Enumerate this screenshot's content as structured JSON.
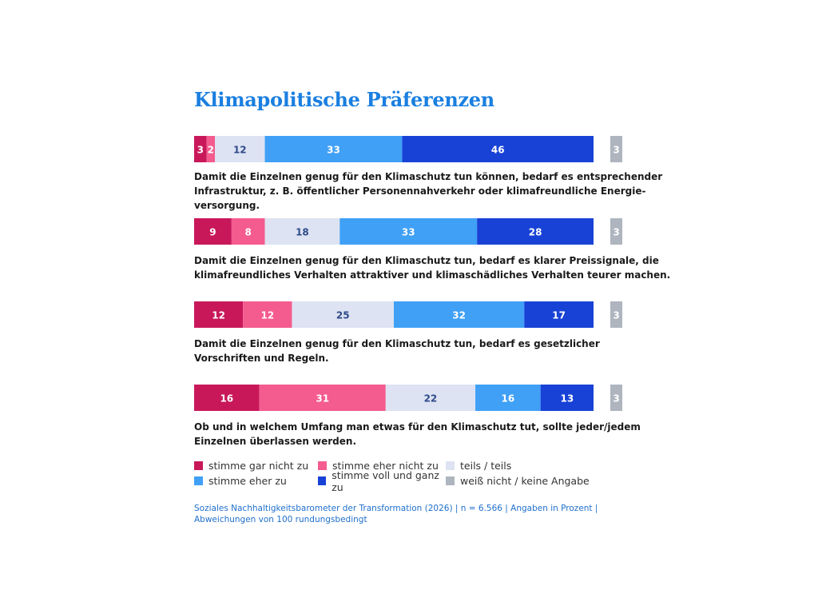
{
  "chart_data": {
    "type": "bar",
    "orientation": "horizontal-stacked",
    "title": "Klimapolitische Präferenzen",
    "categories": [
      "Damit die Einzelnen genug für den Klimaschutz tun können, bedarf es entsprechender Infrastruktur, z. B. öffentlicher Personennahverkehr oder klimafreundliche Energie- versorgung.",
      "Damit die Einzelnen genug für den Klimaschutz tun, bedarf es klarer Preissignale, die klimafreundliches Verhalten attraktiver und klimaschädliches Verhalten teurer machen.",
      "Damit die Einzelnen genug für den Klimaschutz tun, bedarf es gesetzlicher Vorschriften und Regeln.",
      "Ob und in welchem Umfang man etwas für den Klimaschutz tut, sollte jeder/jedem Einzelnen überlassen werden."
    ],
    "category_lines": [
      [
        "Damit die Einzelnen genug für den Klimaschutz tun können, bedarf es entsprechender",
        "Infrastruktur, z. B. öffentlicher Personennahverkehr oder klimafreundliche Energie-",
        "versorgung."
      ],
      [
        "Damit die Einzelnen genug für den Klimaschutz tun, bedarf es klarer Preissignale, die",
        "klimafreundliches Verhalten attraktiver und klimaschädliches Verhalten teurer machen."
      ],
      [
        "Damit die Einzelnen genug für den Klimaschutz tun, bedarf es gesetzlicher",
        "Vorschriften und Regeln."
      ],
      [
        "Ob und in welchem Umfang man etwas für den Klimaschutz tut, sollte jeder/jedem",
        "Einzelnen überlassen werden."
      ]
    ],
    "series": [
      {
        "name": "stimme gar nicht zu",
        "color": "#c8185a",
        "label_color": "#ffffff",
        "values": [
          3,
          9,
          12,
          16
        ]
      },
      {
        "name": "stimme eher nicht zu",
        "color": "#f45b8e",
        "label_color": "#ffffff",
        "values": [
          2,
          8,
          12,
          31
        ]
      },
      {
        "name": "teils / teils",
        "color": "#dde3f2",
        "label_color": "#2f4a8a",
        "values": [
          12,
          18,
          25,
          22
        ]
      },
      {
        "name": "stimme eher zu",
        "color": "#3fa0f6",
        "label_color": "#ffffff",
        "values": [
          33,
          33,
          32,
          16
        ]
      },
      {
        "name": "stimme voll und ganz zu",
        "color": "#1842d6",
        "label_color": "#ffffff",
        "values": [
          46,
          28,
          17,
          13
        ]
      },
      {
        "name": "weiß nicht / keine Angabe",
        "color": "#aeb5bf",
        "label_color": "#ffffff",
        "values": [
          3,
          3,
          3,
          3
        ]
      }
    ],
    "xlim": [
      0,
      100
    ],
    "legend_position": "bottom",
    "grid": false
  },
  "source": "Soziales Nachhaltigkeitsbarometer der Transformation (2026) | n = 6.566 | Angaben in Prozent | Abweichungen von 100 rundungsbedingt"
}
